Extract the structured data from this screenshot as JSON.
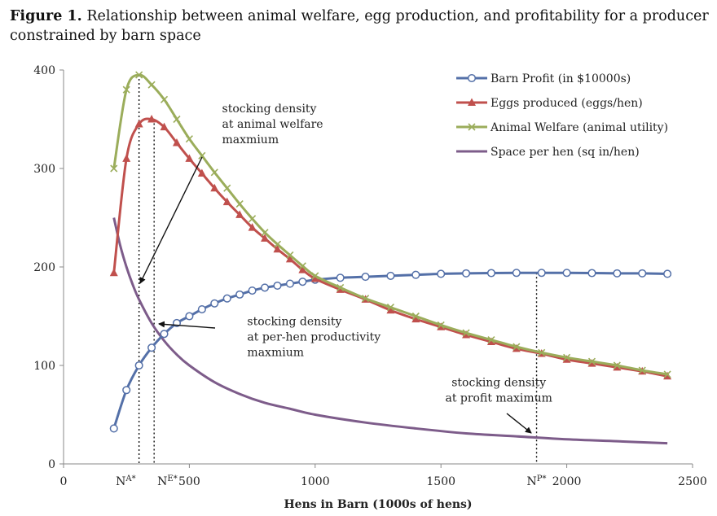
{
  "figure": {
    "label": "Figure 1.",
    "caption": "Relationship between animal welfare, egg production, and profitability for a producer constrained by barn space"
  },
  "chart_data": {
    "type": "line",
    "title": "Figure 1. Relationship between animal welfare, egg production, and profitability for a producer constrained by barn space",
    "xlabel": "Hens in Barn (1000s of hens)",
    "ylabel": "",
    "xlim": [
      0,
      2500
    ],
    "ylim": [
      0,
      400
    ],
    "xticks": [
      0,
      500,
      1000,
      1500,
      2000,
      2500
    ],
    "yticks": [
      0,
      100,
      200,
      300,
      400
    ],
    "grid": false,
    "legend_position": "top-right",
    "series": [
      {
        "name": "Barn Profit (in $10000s)",
        "color": "#5470a8",
        "marker": "circle",
        "x": [
          200,
          250,
          300,
          350,
          400,
          450,
          500,
          550,
          600,
          650,
          700,
          750,
          800,
          850,
          900,
          950,
          1000,
          1100,
          1200,
          1300,
          1400,
          1500,
          1600,
          1700,
          1800,
          1900,
          2000,
          2100,
          2200,
          2300,
          2400
        ],
        "y": [
          36,
          75,
          100,
          118,
          132,
          143,
          150,
          157,
          163,
          168,
          172,
          176,
          179,
          181,
          183,
          185,
          187,
          189,
          190,
          191,
          192,
          193,
          193.5,
          193.8,
          194,
          194,
          194,
          193.8,
          193.5,
          193.5,
          193
        ]
      },
      {
        "name": "Eggs produced (eggs/hen)",
        "color": "#c0504d",
        "marker": "triangle",
        "x": [
          200,
          250,
          300,
          350,
          400,
          450,
          500,
          550,
          600,
          650,
          700,
          750,
          800,
          850,
          900,
          950,
          1000,
          1100,
          1200,
          1300,
          1400,
          1500,
          1600,
          1700,
          1800,
          1900,
          2000,
          2100,
          2200,
          2300,
          2400
        ],
        "y": [
          194,
          310,
          345,
          350,
          342,
          326,
          310,
          295,
          280,
          266,
          253,
          240,
          229,
          218,
          208,
          197,
          188,
          177,
          167,
          156,
          147,
          139,
          131,
          124,
          117,
          112,
          106,
          102,
          98,
          94,
          89
        ]
      },
      {
        "name": "Animal Welfare (animal utility)",
        "color": "#9bad5b",
        "marker": "x",
        "x": [
          200,
          250,
          300,
          350,
          400,
          450,
          500,
          550,
          600,
          650,
          700,
          750,
          800,
          850,
          900,
          950,
          1000,
          1100,
          1200,
          1300,
          1400,
          1500,
          1600,
          1700,
          1800,
          1900,
          2000,
          2100,
          2200,
          2300,
          2400
        ],
        "y": [
          300,
          380,
          395,
          385,
          370,
          350,
          330,
          313,
          296,
          280,
          264,
          249,
          235,
          223,
          212,
          201,
          191,
          179,
          168,
          159,
          150,
          141,
          133,
          126,
          119,
          113,
          108,
          104,
          100,
          95,
          91
        ]
      },
      {
        "name": "Space per hen (sq in/hen)",
        "color": "#7d5c8a",
        "marker": "none",
        "x": [
          200,
          225,
          250,
          275,
          300,
          350,
          400,
          450,
          500,
          600,
          700,
          800,
          900,
          1000,
          1200,
          1400,
          1600,
          1800,
          2000,
          2200,
          2400
        ],
        "y": [
          250,
          222,
          200,
          182,
          167,
          143,
          125,
          111,
          100,
          83,
          71,
          62,
          56,
          50,
          42,
          36,
          31,
          28,
          25,
          23,
          21
        ]
      }
    ],
    "annotations": [
      {
        "lines": [
          "stocking density",
          "at animal welfare",
          "maxmium"
        ],
        "x": 630,
        "y": 357
      },
      {
        "lines": [
          "stocking density",
          "at per-hen productivity",
          "maxmium"
        ],
        "x": 730,
        "y": 141
      },
      {
        "lines": [
          "stocking density",
          "at profit maximum"
        ],
        "x": 1730,
        "y": 79
      }
    ],
    "vlines": [
      {
        "x": 300,
        "label": "N",
        "sup": "A*"
      },
      {
        "x": 360,
        "label": "N",
        "sup": "E*"
      },
      {
        "x": 1880,
        "label": "N",
        "sup": "P*"
      }
    ]
  }
}
